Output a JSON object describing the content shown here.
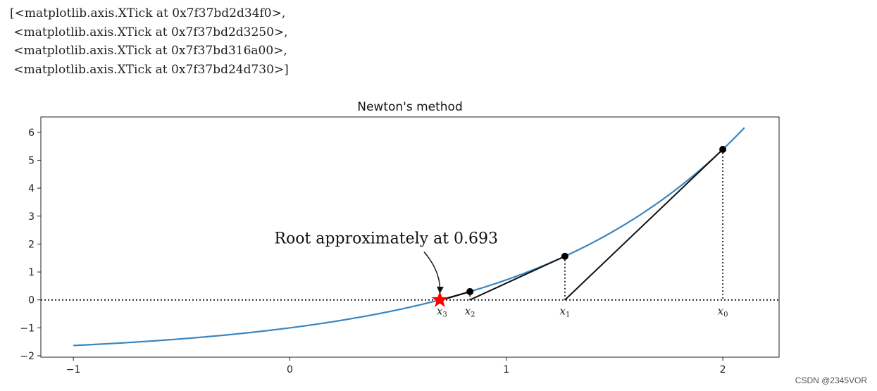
{
  "output_lines": [
    "[<matplotlib.axis.XTick at 0x7f37bd2d34f0>,",
    " <matplotlib.axis.XTick at 0x7f37bd2d3250>,",
    " <matplotlib.axis.XTick at 0x7f37bd316a00>,",
    " <matplotlib.axis.XTick at 0x7f37bd24d730>]"
  ],
  "watermark": "CSDN @2345VOR",
  "chart_data": {
    "type": "line",
    "title": "Newton's method",
    "xlim": [
      -1.15,
      2.26
    ],
    "ylim": [
      -2.05,
      6.55
    ],
    "xticks": [
      -1,
      0,
      1,
      2
    ],
    "xtick_labels": [
      "−1",
      "0",
      "1",
      "2"
    ],
    "yticks": [
      -2,
      -1,
      0,
      1,
      2,
      3,
      4,
      5,
      6
    ],
    "ytick_labels": [
      "−2",
      "−1",
      "0",
      "1",
      "2",
      "3",
      "4",
      "5",
      "6"
    ],
    "curve": {
      "x_range": [
        -1,
        2.1
      ],
      "color": "#3a86c0"
    },
    "zero_line_style": "dotted",
    "iterations": [
      {
        "x": 2.0,
        "y": 5.389,
        "label": "x",
        "sub": "0"
      },
      {
        "x": 1.2707,
        "y": 1.5631,
        "label": "x",
        "sub": "1"
      },
      {
        "x": 0.832,
        "y": 0.2979,
        "label": "x",
        "sub": "2"
      },
      {
        "x": 0.7024,
        "y": 0.0186,
        "label": "x",
        "sub": "3"
      }
    ],
    "root": {
      "x": 0.693,
      "y": 0.0,
      "marker": "star",
      "color": "#ff0000"
    },
    "annotation": {
      "text": "Root approximately at 0.693",
      "x": 0.0,
      "y": 2.0
    }
  }
}
